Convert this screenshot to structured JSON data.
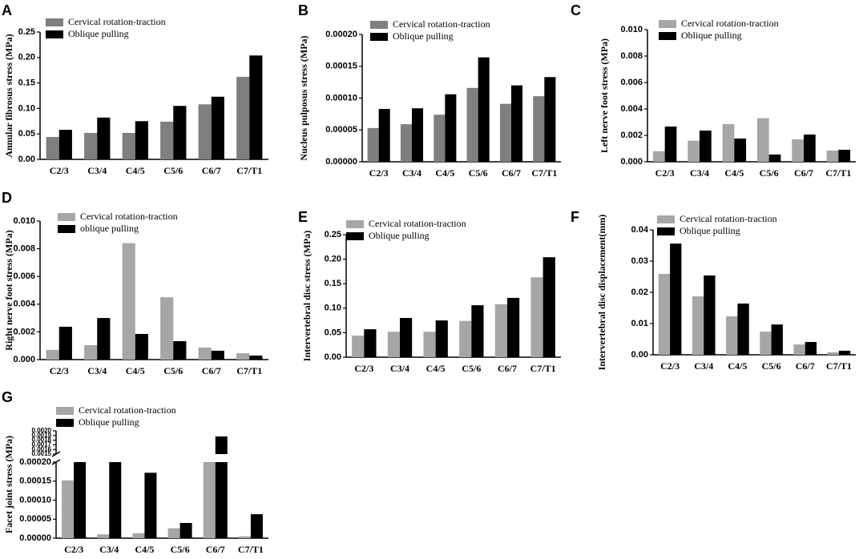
{
  "chart_data": [
    {
      "type": "bar",
      "panel": "A",
      "ylabel": "Annular fibrosus stress (MPa)",
      "categories": [
        "C2/3",
        "C3/4",
        "C4/5",
        "C5/6",
        "C6/7",
        "C7/T1"
      ],
      "series": [
        {
          "name": "Cervical rotation-traction",
          "color": "#7f7f7f",
          "values": [
            0.044,
            0.052,
            0.052,
            0.074,
            0.108,
            0.162
          ]
        },
        {
          "name": "Oblique pulling",
          "color": "#000000",
          "values": [
            0.058,
            0.082,
            0.075,
            0.105,
            0.123,
            0.204
          ]
        }
      ],
      "ylim": [
        0,
        0.25
      ],
      "yticks": [
        {
          "value": 0,
          "label": "0.00"
        },
        0.05,
        {
          "value": 0.1,
          "label": "0.10"
        },
        0.15,
        {
          "value": 0.2,
          "label": "0.20"
        },
        0.25
      ]
    },
    {
      "type": "bar",
      "panel": "B",
      "ylabel": "Nucleus pulposus stress (MPa)",
      "categories": [
        "C2/3",
        "C3/4",
        "C4/5",
        "C5/6",
        "C6/7",
        "C7/T1"
      ],
      "series": [
        {
          "name": "Cervical rotation-traction",
          "color": "#7f7f7f",
          "values": [
            5.3e-05,
            5.9e-05,
            7.4e-05,
            0.000116,
            9.1e-05,
            0.000103
          ]
        },
        {
          "name": "Oblique  pulling",
          "color": "#000000",
          "values": [
            8.3e-05,
            8.4e-05,
            0.000106,
            0.000164,
            0.00012,
            0.000133
          ]
        }
      ],
      "ylim": [
        0,
        0.0002
      ],
      "yticks": [
        {
          "value": 0,
          "label": "0.00000"
        },
        5e-05,
        {
          "value": 0.0001,
          "label": "0.00010"
        },
        0.00015,
        {
          "value": 0.0002,
          "label": "0.00020"
        }
      ]
    },
    {
      "type": "bar",
      "panel": "C",
      "ylabel": "Left nerve foot  stress (MPa)",
      "categories": [
        "C2/3",
        "C3/4",
        "C4/5",
        "C5/6",
        "C6/7",
        "C7/T1"
      ],
      "series": [
        {
          "name": "Cervical rotation-traction",
          "color": "#a6a6a6",
          "values": [
            0.0008,
            0.0016,
            0.00285,
            0.0033,
            0.0017,
            0.00085
          ]
        },
        {
          "name": "Oblique pulling",
          "color": "#000000",
          "values": [
            0.00267,
            0.00236,
            0.00176,
            0.00055,
            0.00206,
            0.00091
          ]
        }
      ],
      "ylim": [
        0,
        0.01
      ],
      "yticks": [
        {
          "value": 0,
          "label": "0.000"
        },
        0.002,
        0.004,
        0.006,
        0.008,
        {
          "value": 0.01,
          "label": "0.010"
        }
      ]
    },
    {
      "type": "bar",
      "panel": "D",
      "ylabel": "Right nerve foot  stress (MPa)",
      "categories": [
        "C2/3",
        "C3/4",
        "C4/5",
        "C5/6",
        "C6/7",
        "C7/T1"
      ],
      "series": [
        {
          "name": "Cervical rotation-traction",
          "color": "#a6a6a6",
          "values": [
            0.0007,
            0.00104,
            0.0084,
            0.0045,
            0.00087,
            0.00046
          ]
        },
        {
          "name": "oblique pulling",
          "color": "#000000",
          "values": [
            0.00237,
            0.003,
            0.00185,
            0.00133,
            0.00064,
            0.00029
          ]
        }
      ],
      "ylim": [
        0,
        0.01
      ],
      "yticks": [
        {
          "value": 0,
          "label": "0.000"
        },
        0.002,
        0.004,
        0.006,
        0.008,
        {
          "value": 0.01,
          "label": "0.010"
        }
      ]
    },
    {
      "type": "bar",
      "panel": "E",
      "ylabel": "Intervertebral disc stress (MPa)",
      "categories": [
        "C2/3",
        "C3/4",
        "C4/5",
        "C5/6",
        "C6/7",
        "C7/T1"
      ],
      "series": [
        {
          "name": "Cervical rotation-traction",
          "color": "#a6a6a6",
          "values": [
            0.044,
            0.052,
            0.052,
            0.074,
            0.108,
            0.163
          ]
        },
        {
          "name": "Oblique pulling",
          "color": "#000000",
          "values": [
            0.057,
            0.08,
            0.075,
            0.106,
            0.121,
            0.204
          ]
        }
      ],
      "ylim": [
        0,
        0.25
      ],
      "yticks": [
        {
          "value": 0,
          "label": "0.00"
        },
        0.05,
        {
          "value": 0.1,
          "label": "0.10"
        },
        0.15,
        {
          "value": 0.2,
          "label": "0.20"
        },
        0.25
      ]
    },
    {
      "type": "bar",
      "panel": "F",
      "ylabel": "Intervertebral disc displacement(mm)",
      "categories": [
        "C2/3",
        "C3/4",
        "C4/5",
        "C5/6",
        "C6/7",
        "C7/T1"
      ],
      "series": [
        {
          "name": "Cervical rotation-traction",
          "color": "#a6a6a6",
          "values": [
            0.0259,
            0.0187,
            0.0123,
            0.0074,
            0.0033,
            0.0008
          ]
        },
        {
          "name": "Oblique pulling",
          "color": "#000000",
          "values": [
            0.0356,
            0.0254,
            0.0164,
            0.0097,
            0.0041,
            0.0013
          ]
        }
      ],
      "ylim": [
        0,
        0.04
      ],
      "yticks": [
        {
          "value": 0,
          "label": "0.00"
        },
        0.01,
        0.02,
        0.03,
        0.04
      ]
    },
    {
      "type": "bar",
      "panel": "G",
      "ylabel": "Facet joint stress (MPa)",
      "categories": [
        "C2/3",
        "C3/4",
        "C4/5",
        "C5/6",
        "C6/7",
        "C7/T1"
      ],
      "series": [
        {
          "name": "Cervical rotation-traction",
          "color": "#a6a6a6",
          "values": [
            0.000152,
            1e-05,
            1.3e-05,
            2.6e-05,
            0.0002,
            5e-06
          ]
        },
        {
          "name": "Oblique pulling",
          "color": "#000000",
          "values": [
            0.0002,
            0.0002,
            0.000172,
            4e-05,
            0.00188,
            6.3e-05
          ]
        }
      ],
      "ylim": [
        0,
        0.002
      ],
      "ybreak": [
        0.0002,
        0.0015
      ],
      "yticks": [
        {
          "value": 0,
          "label": "0.00000"
        },
        5e-05,
        {
          "value": 0.0001,
          "label": "0.00010"
        },
        0.00015,
        {
          "value": 0.0002,
          "label": "0.00020"
        },
        0.0015,
        0.0016,
        0.0017,
        0.0018,
        0.0019,
        {
          "value": 0.002,
          "label": "0.0020"
        }
      ]
    }
  ]
}
